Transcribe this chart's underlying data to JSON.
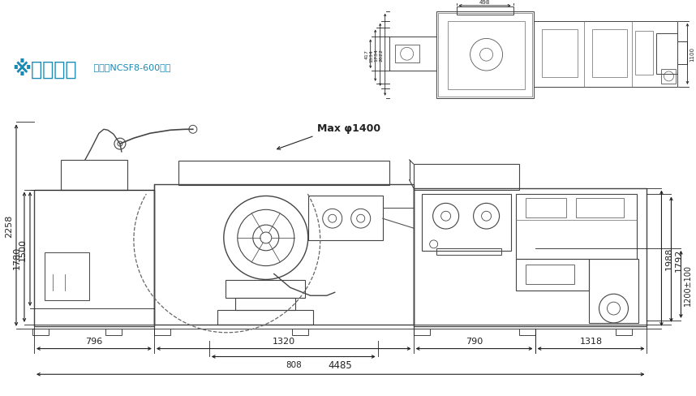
{
  "bg_color": "#ffffff",
  "title_main": "※外形尺寸",
  "title_sub": " 以常用NCSF8-600展示",
  "title_color": "#1a8ab5",
  "dim_color": "#222222",
  "line_color": "#444444",
  "max_label": "Max φ1400"
}
